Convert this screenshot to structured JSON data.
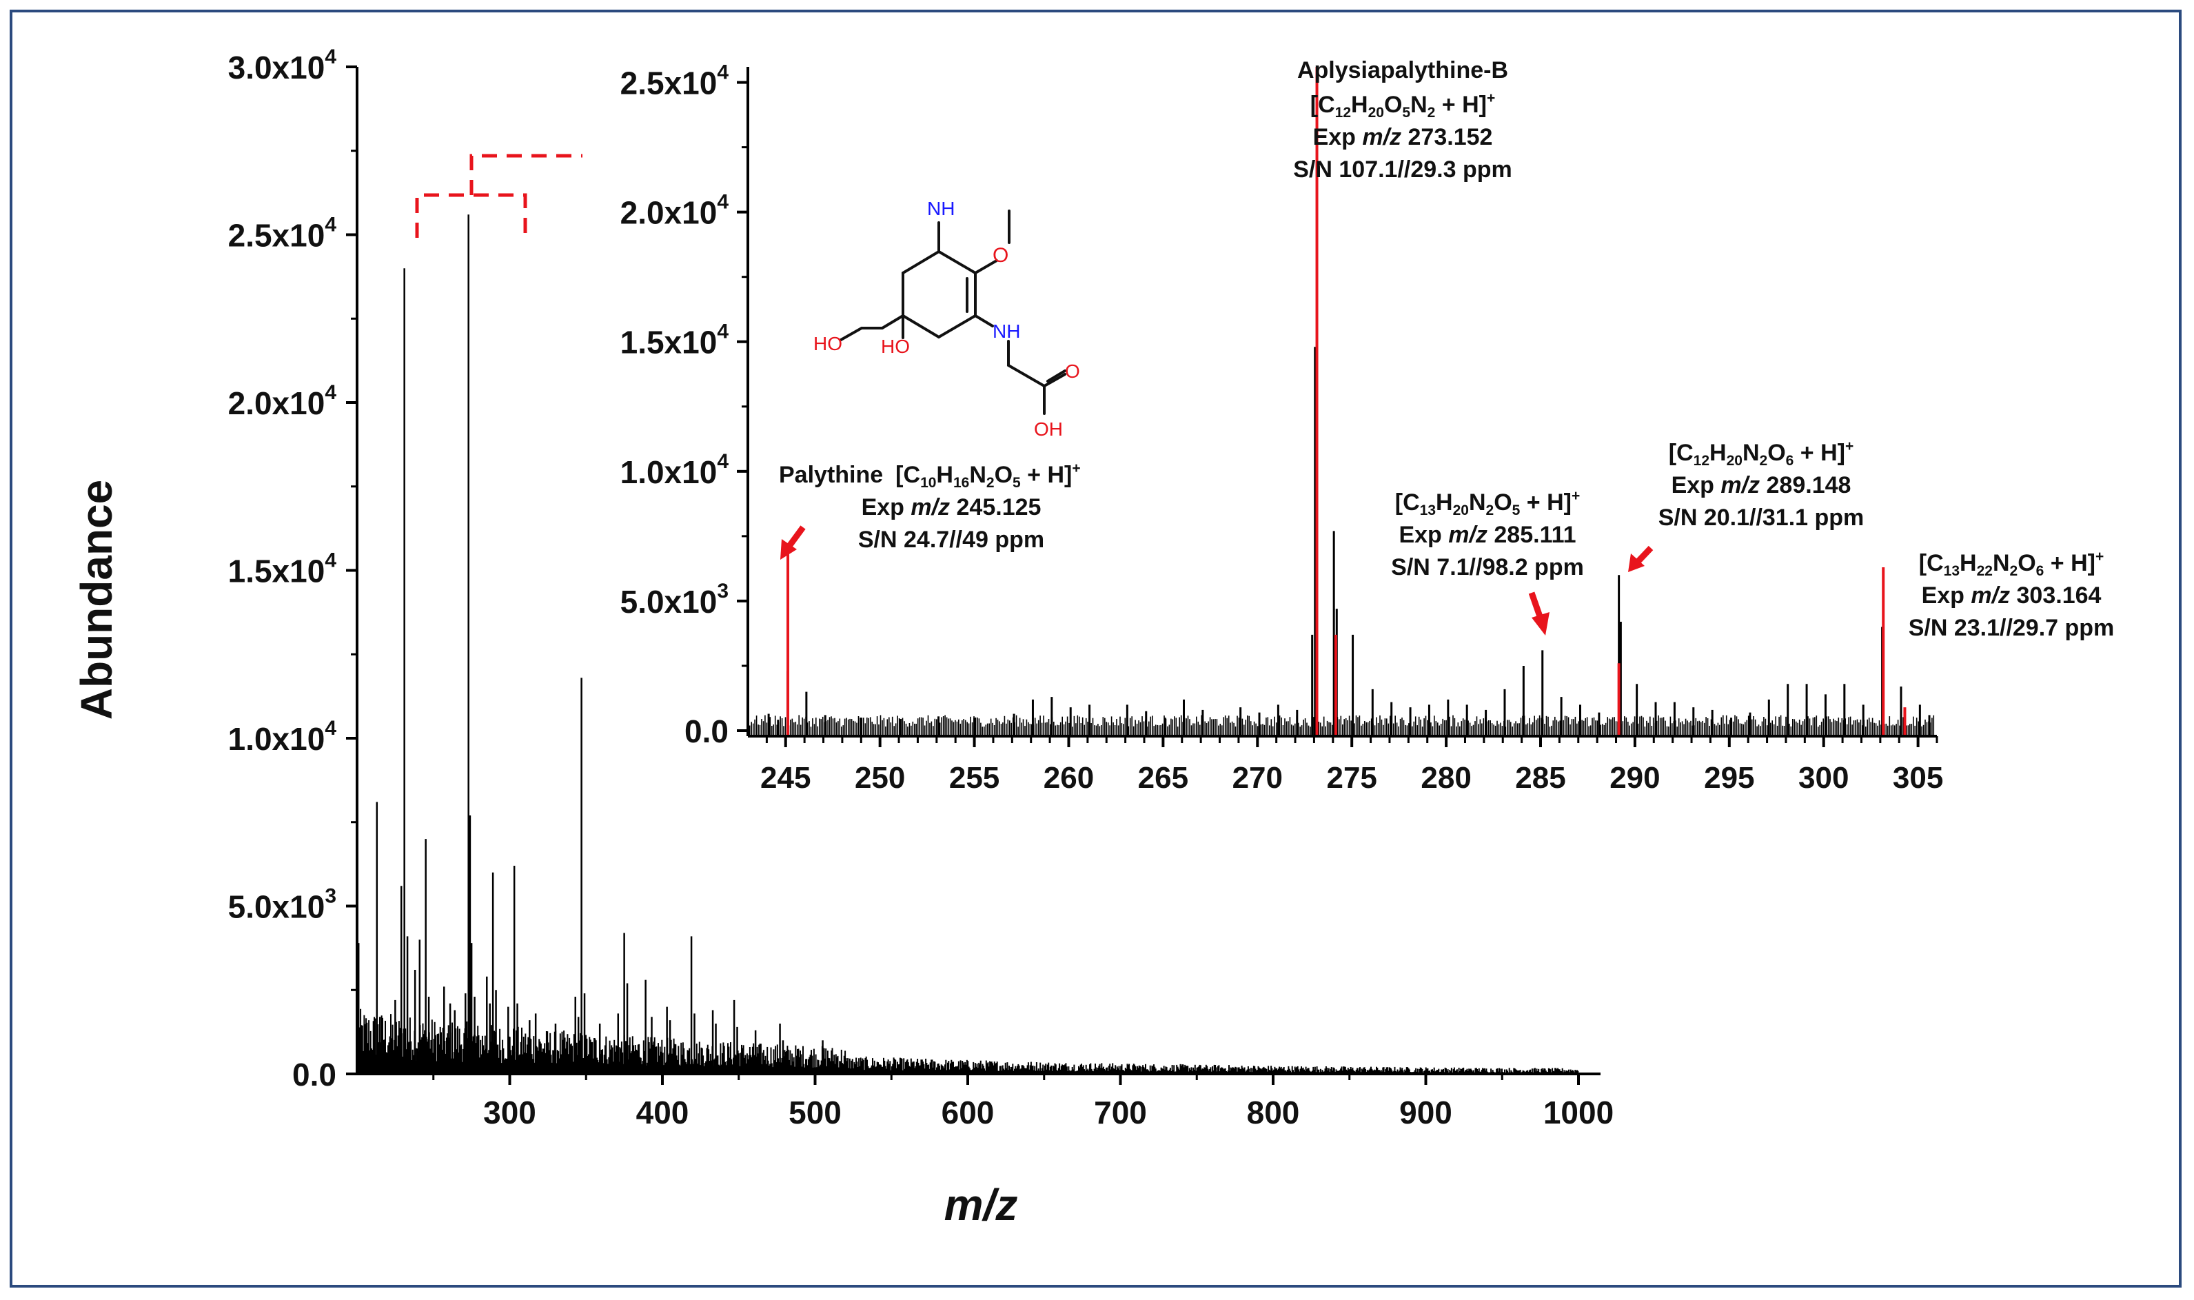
{
  "chart_data": [
    {
      "type": "line",
      "panel": "main",
      "xlabel": "m/z",
      "ylabel": "Abundance",
      "xlim": [
        200,
        1000
      ],
      "ylim": [
        0,
        30000
      ],
      "xticks": [
        300,
        400,
        500,
        600,
        700,
        800,
        900,
        1000
      ],
      "yticks": [
        {
          "value": 0,
          "label": "0.0"
        },
        {
          "value": 5000,
          "label": "5.0x10",
          "exp": "3"
        },
        {
          "value": 10000,
          "label": "1.0x10",
          "exp": "4"
        },
        {
          "value": 15000,
          "label": "1.5x10",
          "exp": "4"
        },
        {
          "value": 20000,
          "label": "2.0x10",
          "exp": "4"
        },
        {
          "value": 25000,
          "label": "2.5x10",
          "exp": "4"
        },
        {
          "value": 30000,
          "label": "3.0x10",
          "exp": "4"
        }
      ],
      "peaks": [
        {
          "x": 201,
          "y": 3900
        },
        {
          "x": 213,
          "y": 8100
        },
        {
          "x": 215,
          "y": 1700
        },
        {
          "x": 225,
          "y": 2200
        },
        {
          "x": 229,
          "y": 5600
        },
        {
          "x": 231,
          "y": 24000
        },
        {
          "x": 233,
          "y": 4100
        },
        {
          "x": 238,
          "y": 3100
        },
        {
          "x": 241,
          "y": 4000
        },
        {
          "x": 245,
          "y": 7000
        },
        {
          "x": 247,
          "y": 2300
        },
        {
          "x": 257,
          "y": 2600
        },
        {
          "x": 261,
          "y": 2100
        },
        {
          "x": 264,
          "y": 1900
        },
        {
          "x": 271,
          "y": 2400
        },
        {
          "x": 273,
          "y": 25600
        },
        {
          "x": 274,
          "y": 7700
        },
        {
          "x": 275,
          "y": 3900
        },
        {
          "x": 277,
          "y": 2300
        },
        {
          "x": 285,
          "y": 2900
        },
        {
          "x": 287,
          "y": 2100
        },
        {
          "x": 289,
          "y": 6000
        },
        {
          "x": 291,
          "y": 2500
        },
        {
          "x": 299,
          "y": 2000
        },
        {
          "x": 303,
          "y": 6200
        },
        {
          "x": 305,
          "y": 2100
        },
        {
          "x": 313,
          "y": 1600
        },
        {
          "x": 317,
          "y": 1800
        },
        {
          "x": 330,
          "y": 1500
        },
        {
          "x": 343,
          "y": 2300
        },
        {
          "x": 345,
          "y": 1700
        },
        {
          "x": 347,
          "y": 11800
        },
        {
          "x": 349,
          "y": 2400
        },
        {
          "x": 359,
          "y": 1500
        },
        {
          "x": 371,
          "y": 1800
        },
        {
          "x": 375,
          "y": 4200
        },
        {
          "x": 377,
          "y": 2700
        },
        {
          "x": 389,
          "y": 2800
        },
        {
          "x": 393,
          "y": 1700
        },
        {
          "x": 403,
          "y": 2000
        },
        {
          "x": 405,
          "y": 1600
        },
        {
          "x": 419,
          "y": 4100
        },
        {
          "x": 421,
          "y": 1800
        },
        {
          "x": 433,
          "y": 1900
        },
        {
          "x": 435,
          "y": 1500
        },
        {
          "x": 447,
          "y": 2200
        },
        {
          "x": 449,
          "y": 1400
        },
        {
          "x": 461,
          "y": 1300
        },
        {
          "x": 477,
          "y": 1500
        },
        {
          "x": 479,
          "y": 1000
        },
        {
          "x": 505,
          "y": 1000
        }
      ]
    },
    {
      "type": "line",
      "panel": "inset",
      "xlim": [
        243,
        306
      ],
      "ylim": [
        -300,
        25600
      ],
      "xticks": [
        245,
        250,
        255,
        260,
        265,
        270,
        275,
        280,
        285,
        290,
        295,
        300,
        305
      ],
      "yticks": [
        {
          "value": 0,
          "label": "0.0"
        },
        {
          "value": 5000,
          "label": "5.0x10",
          "exp": "3"
        },
        {
          "value": 10000,
          "label": "1.0x10",
          "exp": "4"
        },
        {
          "value": 15000,
          "label": "1.5x10",
          "exp": "4"
        },
        {
          "value": 20000,
          "label": "2.0x10",
          "exp": "4"
        },
        {
          "value": 25000,
          "label": "2.5x10",
          "exp": "4"
        }
      ],
      "black_peaks": [
        {
          "x": 244.1,
          "y": 650
        },
        {
          "x": 244.6,
          "y": 420
        },
        {
          "x": 245.1,
          "y": 2300
        },
        {
          "x": 246.1,
          "y": 1500
        },
        {
          "x": 247.1,
          "y": 600
        },
        {
          "x": 249.0,
          "y": 500
        },
        {
          "x": 251.1,
          "y": 450
        },
        {
          "x": 253.1,
          "y": 550
        },
        {
          "x": 255.0,
          "y": 500
        },
        {
          "x": 257.1,
          "y": 650
        },
        {
          "x": 258.1,
          "y": 1200
        },
        {
          "x": 259.1,
          "y": 1300
        },
        {
          "x": 260.1,
          "y": 900
        },
        {
          "x": 261.1,
          "y": 1000
        },
        {
          "x": 263.1,
          "y": 1000
        },
        {
          "x": 264.1,
          "y": 750
        },
        {
          "x": 265.1,
          "y": 500
        },
        {
          "x": 266.1,
          "y": 1200
        },
        {
          "x": 267.1,
          "y": 800
        },
        {
          "x": 269.1,
          "y": 900
        },
        {
          "x": 270.1,
          "y": 700
        },
        {
          "x": 271.1,
          "y": 1000
        },
        {
          "x": 272.1,
          "y": 800
        },
        {
          "x": 272.9,
          "y": 3700
        },
        {
          "x": 273.05,
          "y": 14800
        },
        {
          "x": 274.05,
          "y": 7700
        },
        {
          "x": 274.2,
          "y": 4700
        },
        {
          "x": 275.05,
          "y": 3700
        },
        {
          "x": 276.1,
          "y": 1600
        },
        {
          "x": 277.1,
          "y": 1100
        },
        {
          "x": 278.1,
          "y": 900
        },
        {
          "x": 279.1,
          "y": 1000
        },
        {
          "x": 280.1,
          "y": 1200
        },
        {
          "x": 281.1,
          "y": 1000
        },
        {
          "x": 282.1,
          "y": 800
        },
        {
          "x": 283.1,
          "y": 1600
        },
        {
          "x": 284.1,
          "y": 2500
        },
        {
          "x": 285.1,
          "y": 3100
        },
        {
          "x": 286.1,
          "y": 1300
        },
        {
          "x": 287.1,
          "y": 1000
        },
        {
          "x": 288.1,
          "y": 700
        },
        {
          "x": 289.15,
          "y": 6000
        },
        {
          "x": 289.25,
          "y": 4200
        },
        {
          "x": 290.1,
          "y": 1800
        },
        {
          "x": 291.1,
          "y": 1100
        },
        {
          "x": 292.1,
          "y": 1100
        },
        {
          "x": 293.1,
          "y": 900
        },
        {
          "x": 294.1,
          "y": 800
        },
        {
          "x": 295.1,
          "y": 500
        },
        {
          "x": 296.1,
          "y": 700
        },
        {
          "x": 297.1,
          "y": 1200
        },
        {
          "x": 298.1,
          "y": 1800
        },
        {
          "x": 299.1,
          "y": 1800
        },
        {
          "x": 300.1,
          "y": 1400
        },
        {
          "x": 301.1,
          "y": 1800
        },
        {
          "x": 302.1,
          "y": 1000
        },
        {
          "x": 303.1,
          "y": 4000
        },
        {
          "x": 304.1,
          "y": 1700
        },
        {
          "x": 305.1,
          "y": 1000
        },
        {
          "x": 305.6,
          "y": 600
        }
      ],
      "red_peaks": [
        {
          "x": 245.12,
          "y": 7000
        },
        {
          "x": 273.15,
          "y": 25600
        },
        {
          "x": 274.15,
          "y": 3700
        },
        {
          "x": 289.15,
          "y": 2600
        },
        {
          "x": 303.16,
          "y": 6300
        },
        {
          "x": 304.3,
          "y": 900
        }
      ],
      "annotations": {
        "aply_name": "Aplysiapalythine-B",
        "aply_formula": [
          {
            "t": "[C"
          },
          {
            "s": "12"
          },
          {
            "t": "H"
          },
          {
            "s": "20"
          },
          {
            "t": "O"
          },
          {
            "s": "5"
          },
          {
            "t": "N"
          },
          {
            "s": "2"
          },
          {
            "t": " + H]"
          },
          {
            "p": "+"
          }
        ],
        "aply_exp": "Exp",
        "aply_mz_ital": "m/z",
        "aply_mz": "273.152",
        "aply_sn": "S/N 107.1//29.3 ppm",
        "paly_name": "Palythine",
        "paly_formula": [
          {
            "t": "[C"
          },
          {
            "s": "10"
          },
          {
            "t": "H"
          },
          {
            "s": "16"
          },
          {
            "t": "N"
          },
          {
            "s": "2"
          },
          {
            "t": "O"
          },
          {
            "s": "5"
          },
          {
            "t": " + H]"
          },
          {
            "p": "+"
          }
        ],
        "paly_mz": "245.125",
        "paly_sn": "S/N 24.7//49 ppm",
        "p285_formula": [
          {
            "t": "[C"
          },
          {
            "s": "13"
          },
          {
            "t": "H"
          },
          {
            "s": "20"
          },
          {
            "t": "N"
          },
          {
            "s": "2"
          },
          {
            "t": "O"
          },
          {
            "s": "5"
          },
          {
            "t": " + H]"
          },
          {
            "p": "+"
          }
        ],
        "p285_mz": "285.111",
        "p285_sn": "S/N 7.1//98.2 ppm",
        "p289_formula": [
          {
            "t": "[C"
          },
          {
            "s": "12"
          },
          {
            "t": "H"
          },
          {
            "s": "20"
          },
          {
            "t": "N"
          },
          {
            "s": "2"
          },
          {
            "t": "O"
          },
          {
            "s": "6"
          },
          {
            "t": " + H]"
          },
          {
            "p": "+"
          }
        ],
        "p289_mz": "289.148",
        "p289_sn": "S/N 20.1//31.1 ppm",
        "p303_formula": [
          {
            "t": "[C"
          },
          {
            "s": "13"
          },
          {
            "t": "H"
          },
          {
            "s": "22"
          },
          {
            "t": "N"
          },
          {
            "s": "2"
          },
          {
            "t": "O"
          },
          {
            "s": "6"
          },
          {
            "t": " + H]"
          },
          {
            "p": "+"
          }
        ],
        "p303_mz": "303.164",
        "p303_sn": "S/N 23.1//29.7 ppm"
      },
      "structure_labels": {
        "nh_imine": "NH",
        "nh_amine": "NH",
        "oh_1": "HO",
        "oh_2": "HO",
        "oh_3": "OH",
        "o_carbonyl": "O"
      }
    }
  ],
  "colors": {
    "peak": "#000000",
    "highlight": "#e8141c",
    "frame": "#2b4a7e",
    "nitrogen": "#1a1aff"
  }
}
